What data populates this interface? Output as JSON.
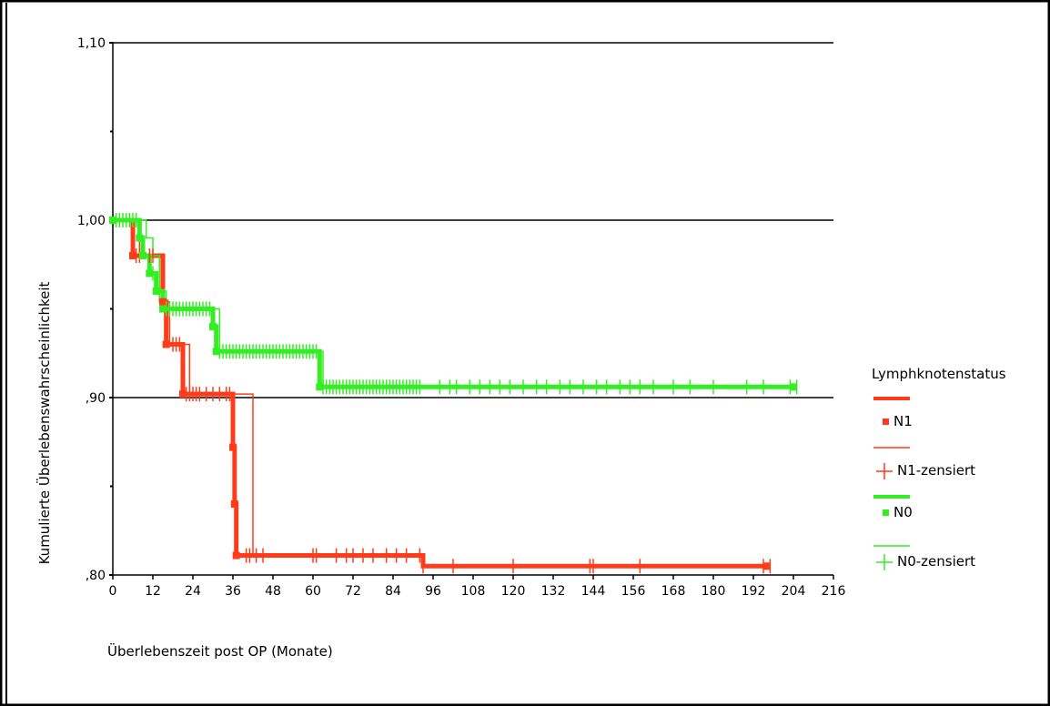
{
  "chart_data": {
    "type": "line",
    "step": true,
    "title": "",
    "xlabel": "Überlebenszeit post OP (Monate)",
    "ylabel": "Kumulierte Überlebenswahrscheinlichkeit",
    "xlim": [
      0,
      216
    ],
    "ylim": [
      0.8,
      1.1
    ],
    "x_ticks": [
      0,
      12,
      24,
      36,
      48,
      60,
      72,
      84,
      96,
      108,
      120,
      132,
      144,
      156,
      168,
      180,
      192,
      204,
      216
    ],
    "x_tick_labels": [
      "0",
      "12",
      "24",
      "36",
      "48",
      "60",
      "72",
      "84",
      "96",
      "108",
      "120",
      "132",
      "144",
      "156",
      "168",
      "180",
      "192",
      "204",
      "216"
    ],
    "y_labeled_ticks": [
      {
        "value": 1.1,
        "label": "1,10"
      },
      {
        "value": 1.0,
        "label": "1,00"
      },
      {
        "value": 0.9,
        "label": ",90"
      },
      {
        "value": 0.8,
        "label": ",80"
      }
    ],
    "y_minor_ticks": [
      1.05,
      0.95,
      0.85
    ],
    "gridlines_y": [
      1.1,
      1.0,
      0.9
    ],
    "legend": {
      "title": "Lymphknotenstatus",
      "position": "right",
      "entries": [
        {
          "label": "N1",
          "color": "#ff3b1a",
          "kind": "line-dot"
        },
        {
          "label": "N1-zensiert",
          "color": "#ff3b1a",
          "kind": "thin-cross"
        },
        {
          "label": "N0",
          "color": "#33ee22",
          "kind": "line-dot"
        },
        {
          "label": "N0-zensiert",
          "color": "#33ee22",
          "kind": "thin-cross"
        }
      ]
    },
    "series": [
      {
        "name": "N1",
        "color": "#ff3b1a",
        "steps": [
          [
            0,
            1.0
          ],
          [
            6,
            0.98
          ],
          [
            15,
            0.954
          ],
          [
            16,
            0.93
          ],
          [
            21,
            0.902
          ],
          [
            36,
            0.872
          ],
          [
            36.5,
            0.84
          ],
          [
            37,
            0.811
          ],
          [
            93,
            0.805
          ],
          [
            196,
            0.805
          ]
        ],
        "event_points": [
          [
            6,
            0.98
          ],
          [
            9,
            0.98
          ],
          [
            15,
            0.954
          ],
          [
            16,
            0.93
          ],
          [
            21,
            0.902
          ],
          [
            36,
            0.872
          ],
          [
            36.5,
            0.84
          ],
          [
            37,
            0.811
          ],
          [
            196,
            0.805
          ]
        ],
        "censored": [
          7,
          8,
          11,
          12,
          18,
          19,
          20,
          22,
          23,
          24,
          25,
          26,
          28,
          30,
          32,
          34,
          35,
          40,
          41,
          43,
          45,
          60,
          61,
          67,
          70,
          72,
          75,
          78,
          82,
          85,
          88,
          92,
          93,
          102,
          120,
          143,
          144,
          158,
          195,
          197
        ]
      },
      {
        "name": "N1-zensiert",
        "color": "#ff3b1a",
        "steps": [
          [
            0,
            1.0
          ],
          [
            8,
            0.98
          ],
          [
            14,
            0.954
          ],
          [
            17,
            0.93
          ],
          [
            23,
            0.902
          ],
          [
            42,
            0.811
          ],
          [
            93,
            0.805
          ],
          [
            196,
            0.805
          ]
        ]
      },
      {
        "name": "N0",
        "color": "#33ee22",
        "steps": [
          [
            0,
            1.0
          ],
          [
            8,
            0.99
          ],
          [
            9,
            0.98
          ],
          [
            11,
            0.97
          ],
          [
            13,
            0.96
          ],
          [
            15,
            0.95
          ],
          [
            30,
            0.94
          ],
          [
            31,
            0.926
          ],
          [
            62,
            0.906
          ],
          [
            204,
            0.906
          ]
        ],
        "event_points": [
          [
            0,
            1.0
          ],
          [
            8,
            0.99
          ],
          [
            9,
            0.98
          ],
          [
            11,
            0.97
          ],
          [
            13,
            0.96
          ],
          [
            15,
            0.95
          ],
          [
            30,
            0.94
          ],
          [
            31,
            0.926
          ],
          [
            62,
            0.906
          ],
          [
            204,
            0.906
          ]
        ],
        "censored": [
          1,
          2,
          3,
          4,
          5,
          6,
          7,
          12,
          14,
          16,
          17,
          18,
          19,
          20,
          21,
          22,
          23,
          24,
          25,
          26,
          27,
          28,
          29,
          32,
          33,
          34,
          35,
          36,
          37,
          38,
          39,
          40,
          41,
          42,
          43,
          44,
          45,
          46,
          47,
          48,
          49,
          50,
          51,
          52,
          53,
          54,
          55,
          56,
          57,
          58,
          59,
          60,
          61,
          63,
          64,
          65,
          66,
          67,
          68,
          69,
          70,
          71,
          72,
          73,
          74,
          75,
          76,
          77,
          78,
          79,
          80,
          81,
          82,
          83,
          84,
          85,
          86,
          87,
          88,
          89,
          90,
          91,
          92,
          98,
          101,
          103,
          107,
          110,
          113,
          116,
          119,
          123,
          127,
          130,
          134,
          137,
          141,
          145,
          148,
          152,
          155,
          158,
          162,
          168,
          173,
          180,
          190,
          195,
          203,
          205
        ]
      },
      {
        "name": "N0-zensiert",
        "color": "#33ee22",
        "steps": [
          [
            0,
            1.0
          ],
          [
            10,
            0.99
          ],
          [
            12,
            0.98
          ],
          [
            14,
            0.96
          ],
          [
            16,
            0.95
          ],
          [
            32,
            0.926
          ],
          [
            63,
            0.906
          ],
          [
            204,
            0.906
          ]
        ]
      }
    ]
  }
}
